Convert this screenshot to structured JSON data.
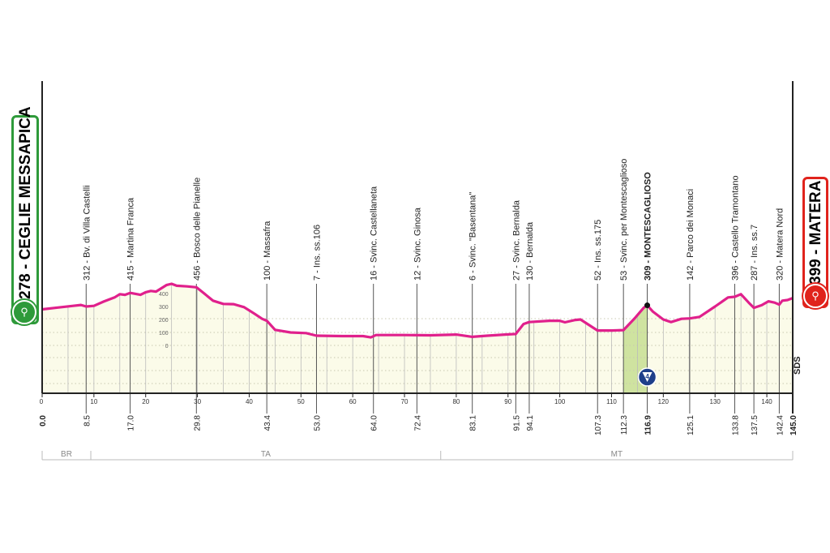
{
  "start": {
    "label": "278 - CEGLIE MESSAPICA",
    "color": "#2e9a3a"
  },
  "finish": {
    "label": "399 - MATERA",
    "color": "#e0231c"
  },
  "sprint_label": "4",
  "sds_label": "SDS",
  "provinces": [
    {
      "code": "BR",
      "from_km": 0,
      "to_km": 9.4
    },
    {
      "code": "TA",
      "from_km": 9.4,
      "to_km": 77
    },
    {
      "code": "MT",
      "from_km": 77,
      "to_km": 145
    }
  ],
  "chart_data": {
    "type": "area",
    "title": "",
    "xlabel": "",
    "ylabel": "",
    "xlim": [
      0,
      145
    ],
    "line_color": "#e0208c",
    "fill_color": "#fbfbe9",
    "x_ticks": [
      0,
      10,
      20,
      30,
      40,
      50,
      60,
      70,
      80,
      90,
      100,
      110,
      120,
      130,
      140
    ],
    "y_ticks": [
      0,
      100,
      200,
      300,
      400
    ],
    "profile": [
      [
        0,
        278
      ],
      [
        3,
        292
      ],
      [
        6,
        305
      ],
      [
        7.5,
        312
      ],
      [
        8.5,
        300
      ],
      [
        10,
        305
      ],
      [
        12,
        340
      ],
      [
        14,
        370
      ],
      [
        15,
        395
      ],
      [
        16,
        390
      ],
      [
        17,
        405
      ],
      [
        19,
        390
      ],
      [
        20,
        410
      ],
      [
        21,
        420
      ],
      [
        22,
        415
      ],
      [
        24,
        465
      ],
      [
        25,
        475
      ],
      [
        26,
        460
      ],
      [
        28,
        455
      ],
      [
        29.8,
        448
      ],
      [
        31,
        410
      ],
      [
        33,
        345
      ],
      [
        35,
        320
      ],
      [
        37,
        318
      ],
      [
        39,
        295
      ],
      [
        41,
        245
      ],
      [
        42.5,
        205
      ],
      [
        43.4,
        190
      ],
      [
        45,
        120
      ],
      [
        48,
        100
      ],
      [
        51,
        95
      ],
      [
        53,
        75
      ],
      [
        58,
        72
      ],
      [
        62,
        72
      ],
      [
        63.5,
        62
      ],
      [
        64.5,
        80
      ],
      [
        70,
        80
      ],
      [
        75,
        78
      ],
      [
        80,
        84
      ],
      [
        83.1,
        66
      ],
      [
        86,
        75
      ],
      [
        90,
        85
      ],
      [
        91.5,
        88
      ],
      [
        93,
        165
      ],
      [
        94.1,
        180
      ],
      [
        98,
        190
      ],
      [
        100,
        190
      ],
      [
        101,
        178
      ],
      [
        103,
        196
      ],
      [
        104,
        200
      ],
      [
        107.3,
        115
      ],
      [
        110,
        115
      ],
      [
        112.3,
        118
      ],
      [
        114.5,
        210
      ],
      [
        116.2,
        290
      ],
      [
        116.9,
        309
      ],
      [
        118,
        260
      ],
      [
        120,
        200
      ],
      [
        121.5,
        180
      ],
      [
        123.5,
        205
      ],
      [
        125.1,
        208
      ],
      [
        127,
        220
      ],
      [
        130,
        300
      ],
      [
        132.5,
        370
      ],
      [
        133.8,
        375
      ],
      [
        135,
        395
      ],
      [
        136.5,
        330
      ],
      [
        137.5,
        290
      ],
      [
        139,
        310
      ],
      [
        140.3,
        340
      ],
      [
        141.5,
        330
      ],
      [
        142.4,
        315
      ],
      [
        143,
        345
      ],
      [
        144,
        350
      ],
      [
        145,
        365
      ]
    ],
    "points": [
      {
        "km": 8.5,
        "label": "312 - Bv. di Villa Castelli"
      },
      {
        "km": 17.0,
        "label": "415 - Martina Franca"
      },
      {
        "km": 29.8,
        "label": "456 - Bosco delle Pianelle"
      },
      {
        "km": 43.4,
        "label": "100 - Massafra"
      },
      {
        "km": 53.0,
        "label": "7 - Ins. ss.106"
      },
      {
        "km": 64.0,
        "label": "16 - Svinc. Castellaneta"
      },
      {
        "km": 72.4,
        "label": "12 - Svinc. Ginosa"
      },
      {
        "km": 83.1,
        "label": "6 - Svinc. \"Basentana\""
      },
      {
        "km": 91.5,
        "label": "27 - Svinc. Bernalda"
      },
      {
        "km": 94.1,
        "label": "130 - Bernalda"
      },
      {
        "km": 107.3,
        "label": "52 - Ins. ss.175"
      },
      {
        "km": 112.3,
        "label": "53 - Svinc. per Montescaglioso"
      },
      {
        "km": 116.9,
        "label": "309 - MONTESCAGLIOSO",
        "bold": true
      },
      {
        "km": 125.1,
        "label": "142 - Parco dei Monaci"
      },
      {
        "km": 133.8,
        "label": "396 - Castello Tramontano"
      },
      {
        "km": 137.5,
        "label": "287 - Ins. ss.7"
      },
      {
        "km": 142.4,
        "label": "320 - Matera Nord"
      }
    ],
    "km_labels": [
      "0.0",
      "8.5",
      "17.0",
      "29.8",
      "43.4",
      "53.0",
      "64.0",
      "72.4",
      "83.1",
      "91.5",
      "94.1",
      "107.3",
      "112.3",
      "116.9",
      "125.1",
      "133.8",
      "137.5",
      "142.4",
      "145.0"
    ],
    "sprint": {
      "km_from": 112.3,
      "km_to": 116.9
    }
  }
}
